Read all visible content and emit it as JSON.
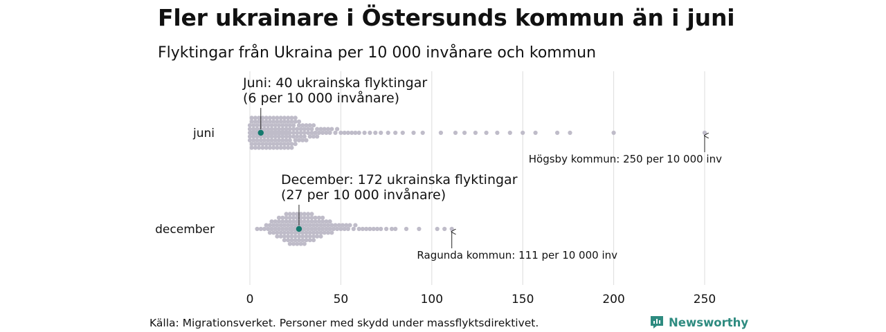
{
  "title": "Fler ukrainare i Östersunds kommun än i juni",
  "subtitle": "Flyktingar från Ukraina per 10 000 invånare och kommun",
  "source": "Källa: Migrationsverket. Personer med skydd under massflyktsdirektivet.",
  "brand": {
    "name": "Newsworthy",
    "icon": "newsworthy-logo-icon",
    "color": "#2e8b80"
  },
  "colors": {
    "dots": "#bfbcc9",
    "highlight": "#14796e",
    "grid": "#dcdcdc"
  },
  "chart_data": {
    "type": "scatter",
    "style": "beeswarm",
    "categories": [
      "juni",
      "december"
    ],
    "xlim": [
      0,
      250
    ],
    "xticks": [
      0,
      50,
      100,
      150,
      200,
      250
    ],
    "grid": true,
    "series": [
      {
        "name": "juni",
        "values": [
          0,
          0,
          0,
          0,
          0,
          1,
          1,
          1,
          1,
          1,
          1,
          1,
          2,
          2,
          2,
          2,
          2,
          2,
          2,
          3,
          3,
          3,
          3,
          3,
          3,
          3,
          3,
          4,
          4,
          4,
          4,
          4,
          4,
          4,
          4,
          5,
          5,
          5,
          5,
          5,
          5,
          5,
          5,
          5,
          6,
          6,
          6,
          6,
          6,
          6,
          6,
          6,
          6,
          7,
          7,
          7,
          7,
          7,
          7,
          7,
          7,
          7,
          8,
          8,
          8,
          8,
          8,
          8,
          8,
          8,
          8,
          8,
          9,
          9,
          9,
          9,
          9,
          9,
          9,
          9,
          9,
          9,
          10,
          10,
          10,
          10,
          10,
          10,
          10,
          10,
          10,
          11,
          11,
          11,
          11,
          11,
          11,
          11,
          11,
          11,
          12,
          12,
          12,
          12,
          12,
          12,
          12,
          12,
          12,
          13,
          13,
          13,
          13,
          13,
          13,
          13,
          13,
          14,
          14,
          14,
          14,
          14,
          14,
          14,
          14,
          15,
          15,
          15,
          15,
          15,
          15,
          15,
          15,
          16,
          16,
          16,
          16,
          16,
          16,
          16,
          17,
          17,
          17,
          17,
          17,
          17,
          17,
          18,
          18,
          18,
          18,
          18,
          18,
          19,
          19,
          19,
          19,
          19,
          19,
          20,
          20,
          20,
          20,
          20,
          20,
          21,
          21,
          21,
          21,
          21,
          22,
          22,
          22,
          22,
          22,
          23,
          23,
          23,
          23,
          24,
          24,
          24,
          24,
          25,
          25,
          25,
          25,
          26,
          26,
          26,
          27,
          27,
          27,
          28,
          28,
          28,
          29,
          29,
          30,
          30,
          30,
          31,
          31,
          32,
          32,
          33,
          33,
          34,
          34,
          35,
          35,
          36,
          37,
          37,
          38,
          39,
          40,
          41,
          42,
          43,
          44,
          45,
          47,
          48,
          50,
          52,
          54,
          56,
          58,
          60,
          63,
          66,
          69,
          72,
          76,
          80,
          84,
          90,
          95,
          105,
          113,
          118,
          124,
          130,
          136,
          143,
          150,
          157,
          169,
          176,
          200,
          250
        ],
        "highlight": {
          "label": "Juni:",
          "value": 6,
          "note_line1": "Juni:  40 ukrainska flyktingar",
          "note_line2": "(6 per 10 000 invånare)"
        },
        "max_annotation": {
          "value": 250,
          "text": "Högsby kommun: 250 per 10 000 inv"
        }
      },
      {
        "name": "december",
        "values": [
          4,
          6,
          8,
          9,
          10,
          11,
          11,
          12,
          12,
          13,
          13,
          14,
          14,
          15,
          15,
          15,
          16,
          16,
          16,
          17,
          17,
          17,
          18,
          18,
          18,
          19,
          19,
          19,
          19,
          20,
          20,
          20,
          20,
          21,
          21,
          21,
          21,
          22,
          22,
          22,
          22,
          22,
          23,
          23,
          23,
          23,
          23,
          24,
          24,
          24,
          24,
          24,
          25,
          25,
          25,
          25,
          25,
          26,
          26,
          26,
          26,
          26,
          27,
          27,
          27,
          27,
          27,
          27,
          28,
          28,
          28,
          28,
          28,
          29,
          29,
          29,
          29,
          29,
          30,
          30,
          30,
          30,
          30,
          31,
          31,
          31,
          31,
          32,
          32,
          32,
          32,
          33,
          33,
          33,
          33,
          34,
          34,
          34,
          34,
          35,
          35,
          35,
          35,
          36,
          36,
          36,
          37,
          37,
          37,
          38,
          38,
          38,
          39,
          39,
          39,
          40,
          40,
          40,
          41,
          41,
          42,
          42,
          43,
          43,
          44,
          44,
          45,
          45,
          46,
          47,
          48,
          49,
          50,
          51,
          52,
          53,
          54,
          55,
          57,
          58,
          60,
          62,
          64,
          66,
          68,
          70,
          72,
          75,
          78,
          80,
          86,
          93,
          103,
          107,
          111
        ],
        "highlight": {
          "value": 27,
          "note_line1": "December: 172 ukrainska flyktingar",
          "note_line2": "(27 per 10 000 invånare)"
        },
        "max_annotation": {
          "value": 111,
          "text": "Ragunda kommun: 111 per 10 000 inv"
        }
      }
    ]
  }
}
